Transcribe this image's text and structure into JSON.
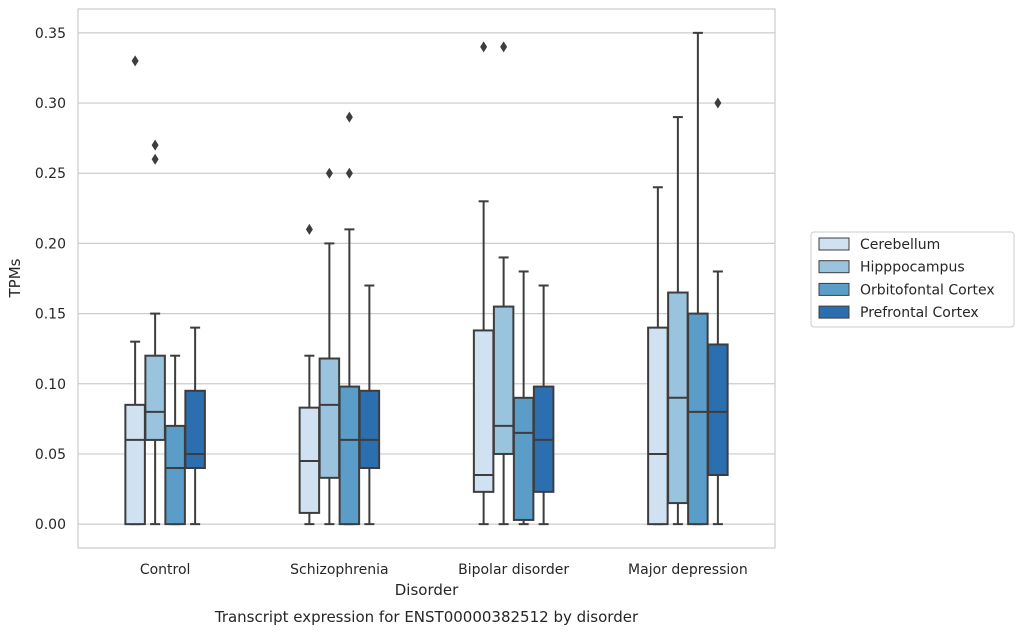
{
  "chart_data": {
    "type": "boxplot",
    "caption": "Transcript expression for ENST00000382512 by disorder",
    "xlabel": "Disorder",
    "ylabel": "TPMs",
    "ylim": [
      -0.017,
      0.367
    ],
    "yticks": [
      0.0,
      0.05,
      0.1,
      0.15,
      0.2,
      0.25,
      0.3,
      0.35
    ],
    "ytick_labels": [
      "0.00",
      "0.05",
      "0.10",
      "0.15",
      "0.20",
      "0.25",
      "0.30",
      "0.35"
    ],
    "grid": "horizontal",
    "legend_position": "outside-right",
    "categories": [
      "Control",
      "Schizophrenia",
      "Bipolar disorder",
      "Major depression"
    ],
    "series": [
      {
        "name": "Cerebellum",
        "color": "#d0e1f2",
        "boxes": [
          {
            "whislo": 0.0,
            "q1": 0.0,
            "med": 0.06,
            "q3": 0.085,
            "whishi": 0.13,
            "fliers": [
              0.33
            ]
          },
          {
            "whislo": 0.0,
            "q1": 0.008,
            "med": 0.045,
            "q3": 0.083,
            "whishi": 0.12,
            "fliers": [
              0.21
            ]
          },
          {
            "whislo": 0.0,
            "q1": 0.023,
            "med": 0.035,
            "q3": 0.138,
            "whishi": 0.23,
            "fliers": [
              0.34
            ]
          },
          {
            "whislo": 0.0,
            "q1": 0.0,
            "med": 0.05,
            "q3": 0.14,
            "whishi": 0.24,
            "fliers": []
          }
        ]
      },
      {
        "name": "Hipppocampus",
        "color": "#9ac3de",
        "boxes": [
          {
            "whislo": 0.0,
            "q1": 0.06,
            "med": 0.08,
            "q3": 0.12,
            "whishi": 0.15,
            "fliers": [
              0.26,
              0.27
            ]
          },
          {
            "whislo": 0.0,
            "q1": 0.033,
            "med": 0.085,
            "q3": 0.118,
            "whishi": 0.2,
            "fliers": [
              0.25
            ]
          },
          {
            "whislo": 0.0,
            "q1": 0.05,
            "med": 0.07,
            "q3": 0.155,
            "whishi": 0.19,
            "fliers": [
              0.34
            ]
          },
          {
            "whislo": 0.0,
            "q1": 0.015,
            "med": 0.09,
            "q3": 0.165,
            "whishi": 0.29,
            "fliers": []
          }
        ]
      },
      {
        "name": "Orbitofontal Cortex",
        "color": "#5b9dc9",
        "boxes": [
          {
            "whislo": 0.0,
            "q1": 0.0,
            "med": 0.04,
            "q3": 0.07,
            "whishi": 0.12,
            "fliers": []
          },
          {
            "whislo": 0.0,
            "q1": 0.0,
            "med": 0.06,
            "q3": 0.098,
            "whishi": 0.21,
            "fliers": [
              0.25,
              0.29
            ]
          },
          {
            "whislo": 0.0,
            "q1": 0.003,
            "med": 0.065,
            "q3": 0.09,
            "whishi": 0.18,
            "fliers": []
          },
          {
            "whislo": 0.0,
            "q1": 0.0,
            "med": 0.08,
            "q3": 0.15,
            "whishi": 0.35,
            "fliers": []
          }
        ]
      },
      {
        "name": "Prefrontal Cortex",
        "color": "#2c6fb0",
        "boxes": [
          {
            "whislo": 0.0,
            "q1": 0.04,
            "med": 0.05,
            "q3": 0.095,
            "whishi": 0.14,
            "fliers": []
          },
          {
            "whislo": 0.0,
            "q1": 0.04,
            "med": 0.06,
            "q3": 0.095,
            "whishi": 0.17,
            "fliers": []
          },
          {
            "whislo": 0.0,
            "q1": 0.023,
            "med": 0.06,
            "q3": 0.098,
            "whishi": 0.17,
            "fliers": []
          },
          {
            "whislo": 0.0,
            "q1": 0.035,
            "med": 0.08,
            "q3": 0.128,
            "whishi": 0.18,
            "fliers": [
              0.3
            ]
          }
        ]
      }
    ]
  }
}
